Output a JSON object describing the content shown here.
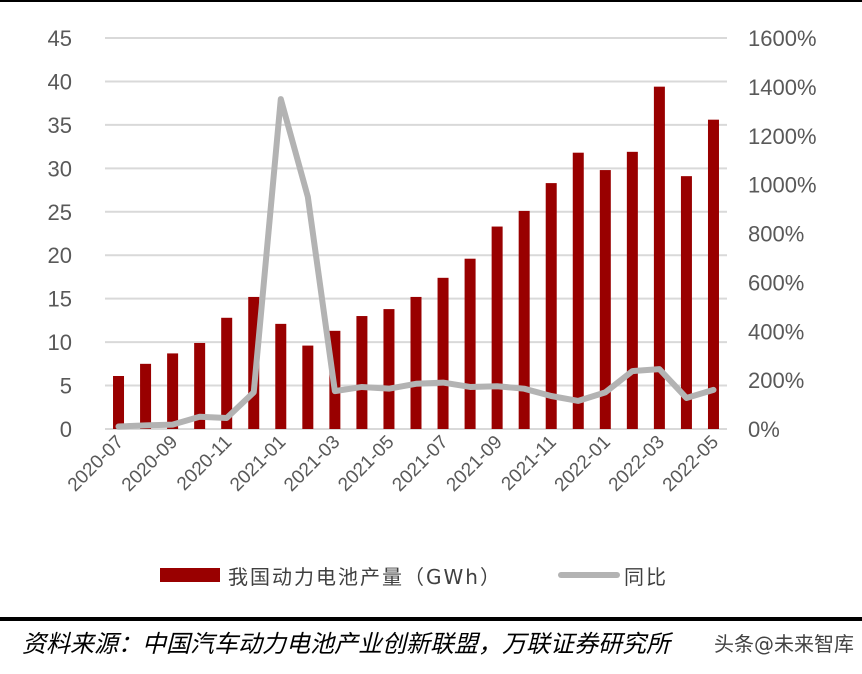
{
  "chart_data": {
    "type": "bar+line",
    "title": "",
    "categories": [
      "2020-07",
      "2020-08",
      "2020-09",
      "2020-10",
      "2020-11",
      "2020-12",
      "2021-01",
      "2021-02",
      "2021-03",
      "2021-04",
      "2021-05",
      "2021-06",
      "2021-07",
      "2021-08",
      "2021-09",
      "2021-10",
      "2021-11",
      "2021-12",
      "2022-01",
      "2022-02",
      "2022-03",
      "2022-04",
      "2022-05"
    ],
    "x_tick_labels": [
      "2020-07",
      "2020-09",
      "2020-11",
      "2021-01",
      "2021-03",
      "2021-05",
      "2021-07",
      "2021-09",
      "2021-11",
      "2022-01",
      "2022-03",
      "2022-05"
    ],
    "series": [
      {
        "name": "我国动力电池产量（GWh）",
        "type": "bar",
        "axis": "left",
        "color": "#990000",
        "values": [
          6.1,
          7.5,
          8.7,
          9.9,
          12.8,
          15.2,
          12.1,
          9.6,
          11.3,
          13.0,
          13.8,
          15.2,
          17.4,
          19.6,
          23.3,
          25.1,
          28.3,
          31.8,
          29.8,
          31.9,
          39.4,
          29.1,
          35.6
        ]
      },
      {
        "name": "同比",
        "type": "line",
        "axis": "right",
        "color": "#b3b3b3",
        "values": [
          10,
          15,
          18,
          50,
          45,
          150,
          1350,
          950,
          155,
          172,
          165,
          185,
          190,
          172,
          175,
          165,
          135,
          115,
          150,
          237,
          245,
          127,
          160
        ]
      }
    ],
    "left_axis": {
      "ylim": [
        0,
        45
      ],
      "ticks": [
        "0",
        "5",
        "10",
        "15",
        "20",
        "25",
        "30",
        "35",
        "40",
        "45"
      ]
    },
    "right_axis": {
      "ylim": [
        0,
        1600
      ],
      "ticks": [
        "0%",
        "200%",
        "400%",
        "600%",
        "800%",
        "1000%",
        "1200%",
        "1400%",
        "1600%"
      ]
    },
    "xlabel": "",
    "ylabel": "",
    "grid": true,
    "legend_position": "bottom"
  },
  "legend": {
    "bar_label": "我国动力电池产量（GWh）",
    "line_label": "同比"
  },
  "source": {
    "text": "资料来源：中国汽车动力电池产业创新联盟，万联证券研究所",
    "watermark": "头条@未来智库"
  }
}
